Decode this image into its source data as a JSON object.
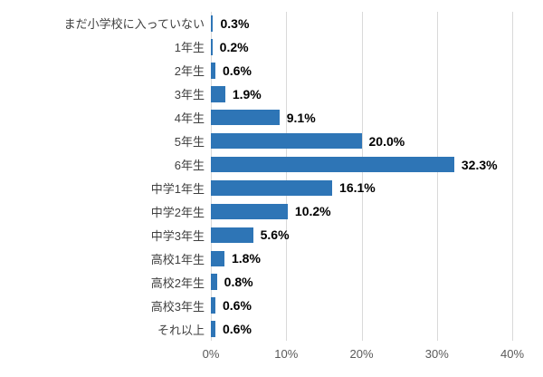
{
  "chart_data": {
    "type": "bar",
    "orientation": "horizontal",
    "categories": [
      "まだ小学校に入っていない",
      "1年生",
      "2年生",
      "3年生",
      "4年生",
      "5年生",
      "6年生",
      "中学1年生",
      "中学2年生",
      "中学3年生",
      "高校1年生",
      "高校2年生",
      "高校3年生",
      "それ以上"
    ],
    "values": [
      0.3,
      0.2,
      0.6,
      1.9,
      9.1,
      20.0,
      32.3,
      16.1,
      10.2,
      5.6,
      1.8,
      0.8,
      0.6,
      0.6
    ],
    "value_labels": [
      "0.3%",
      "0.2%",
      "0.6%",
      "1.9%",
      "9.1%",
      "20.0%",
      "32.3%",
      "16.1%",
      "10.2%",
      "5.6%",
      "1.8%",
      "0.8%",
      "0.6%",
      "0.6%"
    ],
    "x_ticks": [
      0,
      10,
      20,
      30,
      40
    ],
    "x_tick_labels": [
      "0%",
      "10%",
      "20%",
      "30%",
      "40%"
    ],
    "xlim": [
      0,
      40
    ],
    "grid": true,
    "legend": "none",
    "bar_color": "#2E75B6",
    "gridline_color": "#D9D9D9",
    "category_label_color": "#404040",
    "value_label_color": "#000000",
    "axis_tick_label_color": "#595959"
  }
}
